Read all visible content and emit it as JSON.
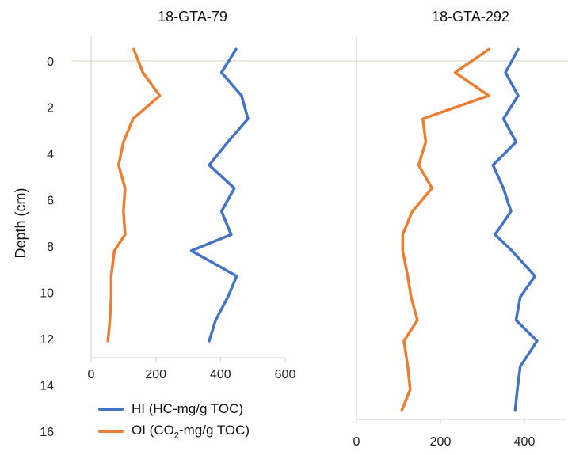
{
  "colors": {
    "hi": "#4472C4",
    "oi": "#ED7D31",
    "zero_line": "#d9d3c3",
    "axis": "#cfcfcf"
  },
  "legend": {
    "hi_label": "HI (HC-mg/g TOC)",
    "oi_prefix": "OI (CO",
    "oi_sub": "2",
    "oi_suffix": "-mg/g TOC)"
  },
  "chart_data": [
    {
      "type": "line",
      "title": "18-GTA-79",
      "ylabel": "Depth (cm)",
      "ylim": [
        16,
        -1
      ],
      "yticks": [
        0,
        2,
        4,
        6,
        8,
        10,
        12,
        14,
        16
      ],
      "xlim": [
        0,
        600
      ],
      "xticks": [
        0,
        200,
        400,
        600
      ],
      "series": [
        {
          "name": "HI (HC-mg/g TOC)",
          "color_key": "hi",
          "points": [
            [
              448,
              -0.5
            ],
            [
              403,
              0.5
            ],
            [
              465,
              1.5
            ],
            [
              485,
              2.5
            ],
            [
              423,
              3.5
            ],
            [
              365,
              4.5
            ],
            [
              443,
              5.5
            ],
            [
              403,
              6.5
            ],
            [
              433,
              7.5
            ],
            [
              310,
              8.2
            ],
            [
              450,
              9.3
            ],
            [
              423,
              10.2
            ],
            [
              385,
              11.2
            ],
            [
              365,
              12.1
            ]
          ]
        },
        {
          "name": "OI (CO2-mg/g TOC)",
          "color_key": "oi",
          "points": [
            [
              132,
              -0.5
            ],
            [
              160,
              0.5
            ],
            [
              212,
              1.5
            ],
            [
              130,
              2.5
            ],
            [
              100,
              3.5
            ],
            [
              85,
              4.5
            ],
            [
              105,
              5.5
            ],
            [
              100,
              6.5
            ],
            [
              105,
              7.5
            ],
            [
              72,
              8.2
            ],
            [
              62,
              9.3
            ],
            [
              62,
              10.2
            ],
            [
              58,
              11.2
            ],
            [
              52,
              12.1
            ]
          ]
        }
      ]
    },
    {
      "type": "line",
      "title": "18-GTA-292",
      "ylim": [
        16,
        -1
      ],
      "xlim": [
        0,
        500
      ],
      "xticks": [
        0,
        200,
        400
      ],
      "series": [
        {
          "name": "HI (HC-mg/g TOC)",
          "color_key": "hi",
          "points": [
            [
              385,
              -0.5
            ],
            [
              355,
              0.5
            ],
            [
              385,
              1.5
            ],
            [
              350,
              2.5
            ],
            [
              380,
              3.5
            ],
            [
              325,
              4.5
            ],
            [
              350,
              5.5
            ],
            [
              368,
              6.5
            ],
            [
              330,
              7.5
            ],
            [
              370,
              8.2
            ],
            [
              425,
              9.3
            ],
            [
              390,
              10.2
            ],
            [
              380,
              11.2
            ],
            [
              430,
              12.1
            ],
            [
              390,
              13.2
            ],
            [
              383,
              14.2
            ],
            [
              378,
              15.1
            ]
          ]
        },
        {
          "name": "OI (CO2-mg/g TOC)",
          "color_key": "oi",
          "points": [
            [
              315,
              -0.5
            ],
            [
              235,
              0.5
            ],
            [
              315,
              1.5
            ],
            [
              158,
              2.5
            ],
            [
              165,
              3.5
            ],
            [
              148,
              4.5
            ],
            [
              180,
              5.5
            ],
            [
              133,
              6.5
            ],
            [
              110,
              7.5
            ],
            [
              110,
              8.2
            ],
            [
              122,
              9.3
            ],
            [
              130,
              10.2
            ],
            [
              145,
              11.2
            ],
            [
              113,
              12.1
            ],
            [
              122,
              13.2
            ],
            [
              128,
              14.2
            ],
            [
              108,
              15.1
            ]
          ]
        }
      ]
    }
  ]
}
